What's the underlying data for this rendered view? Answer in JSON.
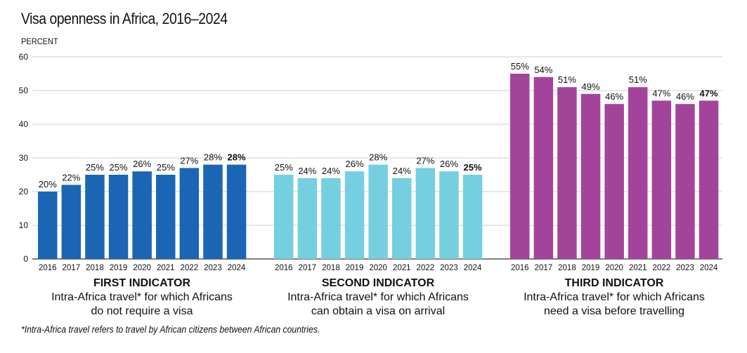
{
  "header": {
    "title": "Visa openness in Africa, 2016–2024",
    "ylabel": "PERCENT"
  },
  "footnote": "*Intra-Africa travel refers to travel by African citizens between African countries.",
  "chart_data": {
    "type": "bar",
    "title": "Visa openness in Africa, 2016–2024",
    "ylabel": "PERCENT",
    "ylim": [
      0,
      60
    ],
    "yticks": [
      0,
      10,
      20,
      30,
      40,
      50,
      60
    ],
    "grid": true,
    "categories": [
      "2016",
      "2017",
      "2018",
      "2019",
      "2020",
      "2021",
      "2022",
      "2023",
      "2024"
    ],
    "series": [
      {
        "name": "FIRST INDICATOR",
        "subtitle": [
          "Intra-Africa travel* for which Africans",
          "do not require a visa"
        ],
        "color": "#1a66b5",
        "values": [
          20,
          22,
          25,
          25,
          26,
          25,
          27,
          28,
          28
        ],
        "labels": [
          "20%",
          "22%",
          "25%",
          "25%",
          "26%",
          "25%",
          "27%",
          "28%",
          "28%"
        ]
      },
      {
        "name": "SECOND INDICATOR",
        "subtitle": [
          "Intra-Africa travel* for which Africans",
          "can obtain a visa on arrival"
        ],
        "color": "#74cfe1",
        "values": [
          25,
          24,
          24,
          26,
          28,
          24,
          27,
          26,
          25
        ],
        "labels": [
          "25%",
          "24%",
          "24%",
          "26%",
          "28%",
          "24%",
          "27%",
          "26%",
          "25%"
        ]
      },
      {
        "name": "THIRD INDICATOR",
        "subtitle": [
          "Intra-Africa travel* for which Africans",
          "need a visa before travelling"
        ],
        "color": "#a3449b",
        "values": [
          55,
          54,
          51,
          49,
          46,
          51,
          47,
          46,
          47
        ],
        "labels": [
          "55%",
          "54%",
          "51%",
          "49%",
          "46%",
          "51%",
          "47%",
          "46%",
          "47%"
        ]
      }
    ]
  }
}
